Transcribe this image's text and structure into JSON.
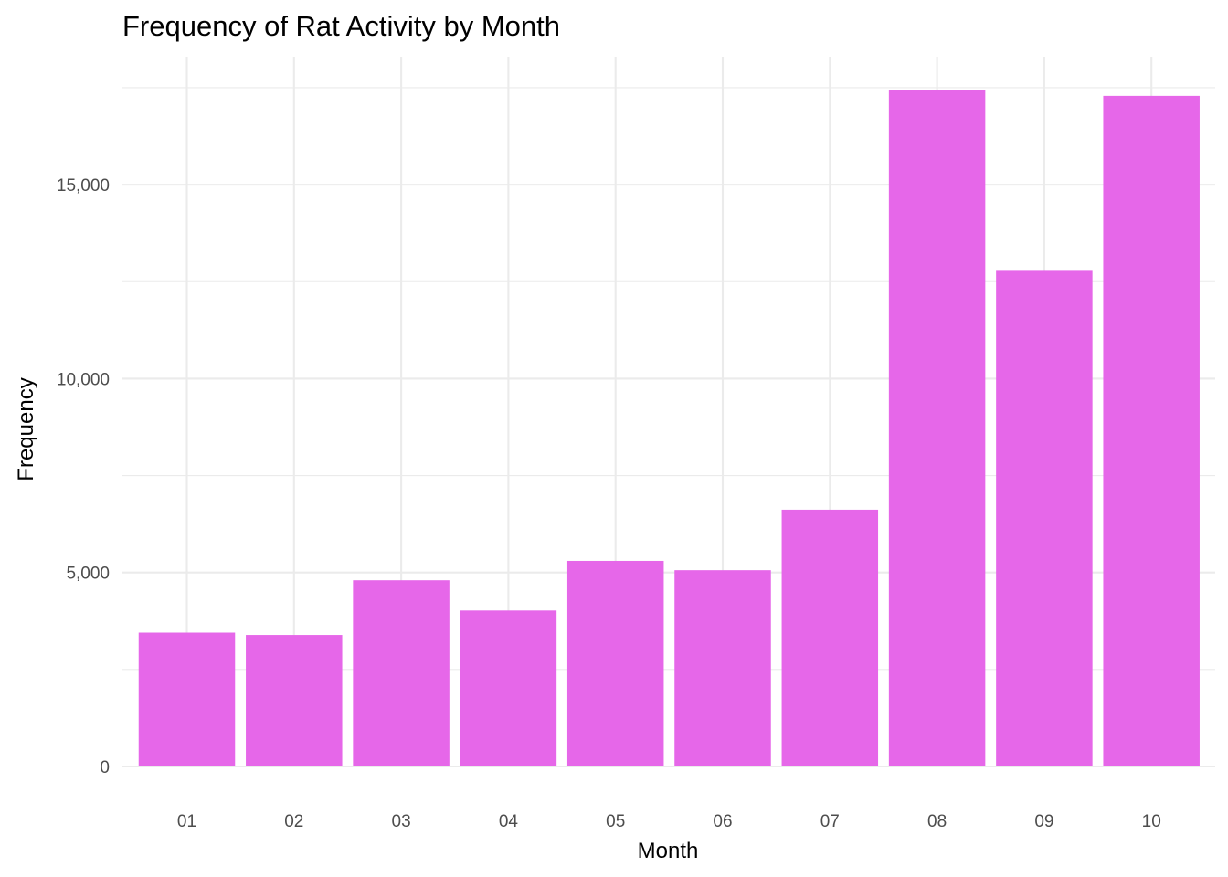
{
  "chart_data": {
    "type": "bar",
    "title": "Frequency of Rat Activity by Month",
    "xlabel": "Month",
    "ylabel": "Frequency",
    "categories": [
      "01",
      "02",
      "03",
      "04",
      "05",
      "06",
      "07",
      "08",
      "09",
      "10"
    ],
    "values": [
      3450,
      3390,
      4800,
      4020,
      5300,
      5060,
      6620,
      17450,
      12780,
      17290
    ],
    "ylim": [
      0,
      18300
    ],
    "yticks": [
      0,
      5000,
      10000,
      15000
    ],
    "ytick_labels": [
      "0",
      "5,000",
      "10,000",
      "15,000"
    ],
    "grid": true,
    "legend": "none",
    "colors": {
      "bar": "#e667e9",
      "grid": "#ebebeb",
      "background": "#ffffff"
    }
  }
}
